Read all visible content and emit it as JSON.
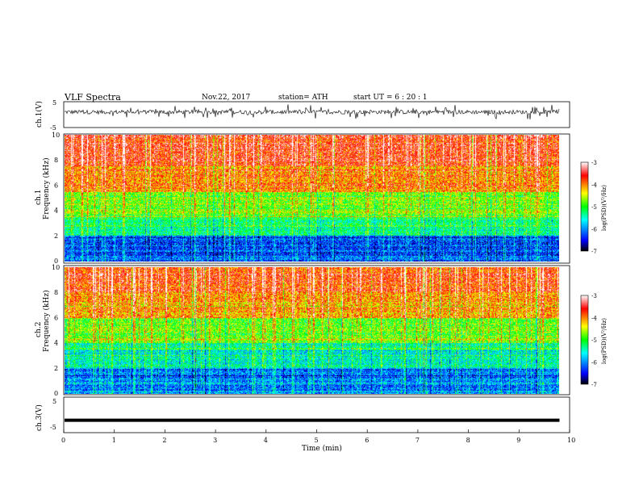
{
  "header": {
    "title": "VLF  Spectra",
    "date": "Nov.22, 2017",
    "station": "station= ATH",
    "start": "start  UT  =   6  : 20 : 1"
  },
  "chart_data": [
    {
      "type": "line",
      "title": "",
      "ylabel": "ch.1(V)",
      "ylim": [
        -5,
        5
      ],
      "yticks": [
        "5",
        "-5"
      ],
      "xlim": [
        0,
        10
      ],
      "series": [
        {
          "description": "noisy waveform around +1 V",
          "typical_range": [
            -1,
            3
          ]
        }
      ]
    },
    {
      "type": "heatmap",
      "channel_label": "ch.1",
      "ylabel": "Frequency  (kHz)",
      "ylim": [
        0,
        10
      ],
      "yticks": [
        "0",
        "2",
        "4",
        "6",
        "8",
        "10"
      ],
      "xlim": [
        0,
        10
      ],
      "data_extent_min": 9.8,
      "colorbar": {
        "label": "log(PSD)(V²/Hz)",
        "range": [
          -7,
          -3
        ],
        "ticks": [
          "-3",
          "-4",
          "-5",
          "-6",
          "-7"
        ]
      },
      "bands": [
        {
          "freq": [
            0,
            2
          ],
          "level": -6.2
        },
        {
          "freq": [
            2,
            3.5
          ],
          "level": -5.3
        },
        {
          "freq": [
            3.5,
            5.5
          ],
          "level": -4.7
        },
        {
          "freq": [
            5.5,
            7.5
          ],
          "level": -4.0
        },
        {
          "freq": [
            7.5,
            10
          ],
          "level": -3.6
        }
      ]
    },
    {
      "type": "heatmap",
      "channel_label": "ch.2",
      "ylabel": "Frequency  (kHz)",
      "ylim": [
        0,
        10
      ],
      "yticks": [
        "0",
        "2",
        "4",
        "6",
        "8",
        "10"
      ],
      "xlim": [
        0,
        10
      ],
      "data_extent_min": 9.8,
      "colorbar": {
        "label": "log(PSD)(V²/Hz)",
        "range": [
          -7,
          -3
        ],
        "ticks": [
          "-3",
          "-4",
          "-5",
          "-6",
          "-7"
        ]
      },
      "bands": [
        {
          "freq": [
            0,
            2
          ],
          "level": -6.1
        },
        {
          "freq": [
            2,
            4
          ],
          "level": -5.5
        },
        {
          "freq": [
            4,
            6
          ],
          "level": -4.8
        },
        {
          "freq": [
            6,
            8
          ],
          "level": -4.1
        },
        {
          "freq": [
            8,
            10
          ],
          "level": -3.7
        }
      ]
    },
    {
      "type": "line",
      "title": "",
      "ylabel": "ch.3(V)",
      "ylim": [
        -5,
        5
      ],
      "yticks": [
        "5",
        "-5"
      ],
      "xlim": [
        0,
        10
      ],
      "xlabel": "Time  (min)",
      "xticks": [
        "0",
        "1",
        "2",
        "3",
        "4",
        "5",
        "6",
        "7",
        "8",
        "9",
        "10"
      ],
      "series": [
        {
          "description": "flat line",
          "value": -1.5
        }
      ]
    }
  ],
  "colors": {
    "scale": [
      "#000000",
      "#0000ff",
      "#00ffff",
      "#00ff00",
      "#ffff00",
      "#ff0000",
      "#ffffff"
    ]
  }
}
